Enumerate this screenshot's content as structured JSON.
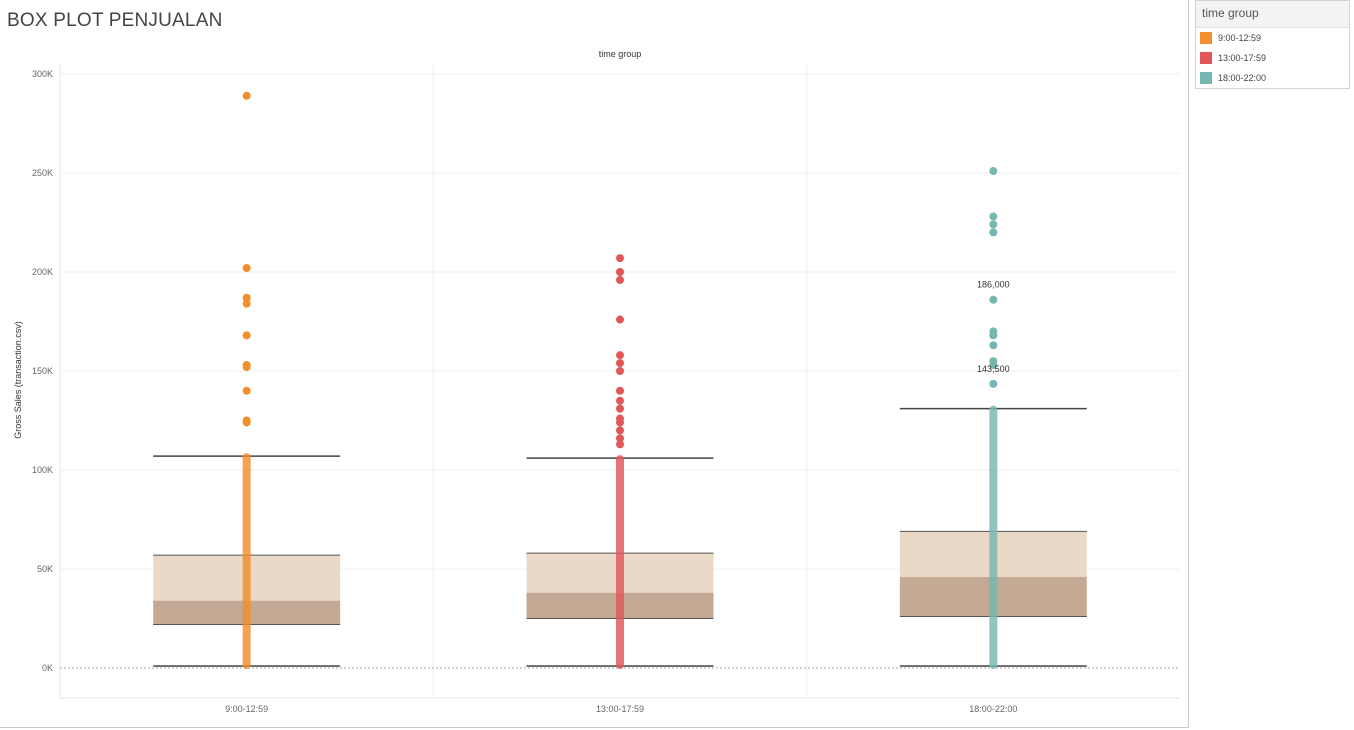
{
  "title": "BOX PLOT PENJUALAN",
  "legend": {
    "title": "time group",
    "items": [
      {
        "label": "9:00-12:59",
        "color": "#f28e2b"
      },
      {
        "label": "13:00-17:59",
        "color": "#e15759"
      },
      {
        "label": "18:00-22:00",
        "color": "#76b7b2"
      }
    ]
  },
  "chart_data": {
    "type": "box",
    "title": "BOX PLOT PENJUALAN",
    "column_header": "time group",
    "xlabel": "",
    "ylabel": "Gross Sales (transaction.csv)",
    "ylim": [
      0,
      300000
    ],
    "yticks": [
      0,
      50000,
      100000,
      150000,
      200000,
      250000,
      300000
    ],
    "ytick_labels": [
      "0K",
      "50K",
      "100K",
      "150K",
      "200K",
      "250K",
      "300K"
    ],
    "grid": true,
    "legend_position": "top-right",
    "colors": {
      "box_upper": "#ead9c7",
      "box_lower": "#c4aa95",
      "whisker": "#444444"
    },
    "categories": [
      "9:00-12:59",
      "13:00-17:59",
      "18:00-22:00"
    ],
    "boxes": [
      {
        "category": "9:00-12:59",
        "color": "#f28e2b",
        "lower_whisker": 1000,
        "q1": 22000,
        "median": 34000,
        "q3": 57000,
        "upper_whisker": 107000,
        "outliers": [
          289000,
          202000,
          187000,
          184000,
          168000,
          153000,
          152000,
          140000,
          125000,
          124000
        ]
      },
      {
        "category": "13:00-17:59",
        "color": "#e15759",
        "lower_whisker": 1000,
        "q1": 25000,
        "median": 38000,
        "q3": 58000,
        "upper_whisker": 106000,
        "outliers": [
          207000,
          200000,
          196000,
          176000,
          158000,
          154000,
          150000,
          140000,
          135000,
          131000,
          126000,
          124000,
          120000,
          116000,
          113000
        ]
      },
      {
        "category": "18:00-22:00",
        "color": "#76b7b2",
        "lower_whisker": 1000,
        "q1": 26000,
        "median": 46000,
        "q3": 69000,
        "upper_whisker": 131000,
        "outliers": [
          251000,
          228000,
          224000,
          220000,
          186000,
          170000,
          168000,
          163000,
          155000,
          153000,
          143500
        ]
      }
    ],
    "annotations": [
      {
        "category": "18:00-22:00",
        "value": 186000,
        "text": "186,000"
      },
      {
        "category": "18:00-22:00",
        "value": 143500,
        "text": "143,500"
      }
    ]
  }
}
